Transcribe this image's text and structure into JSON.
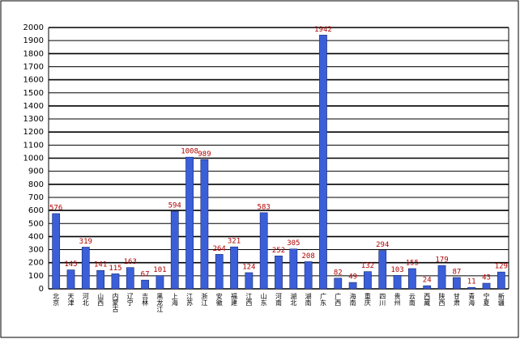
{
  "chart_data": {
    "type": "bar",
    "categories": [
      "北京",
      "天津",
      "河北",
      "山西",
      "内蒙古",
      "辽宁",
      "吉林",
      "黑龙江",
      "上海",
      "江苏",
      "浙江",
      "安徽",
      "福建",
      "江西",
      "山东",
      "河南",
      "湖北",
      "湖南",
      "广东",
      "广西",
      "海南",
      "重庆",
      "四川",
      "贵州",
      "云南",
      "西藏",
      "陕西",
      "甘肃",
      "青海",
      "宁夏",
      "新疆"
    ],
    "values": [
      576,
      145,
      319,
      141,
      115,
      163,
      67,
      101,
      594,
      1008,
      989,
      264,
      321,
      124,
      583,
      252,
      305,
      208,
      1942,
      82,
      49,
      132,
      294,
      103,
      155,
      24,
      179,
      87,
      11,
      43,
      129
    ],
    "color": "#3b5fd9",
    "ylim": [
      0,
      2000
    ],
    "yticks": [
      0,
      100,
      200,
      300,
      400,
      500,
      600,
      700,
      800,
      900,
      1000,
      1100,
      1200,
      1300,
      1400,
      1500,
      1600,
      1700,
      1800,
      1900,
      2000
    ],
    "grid": true
  }
}
